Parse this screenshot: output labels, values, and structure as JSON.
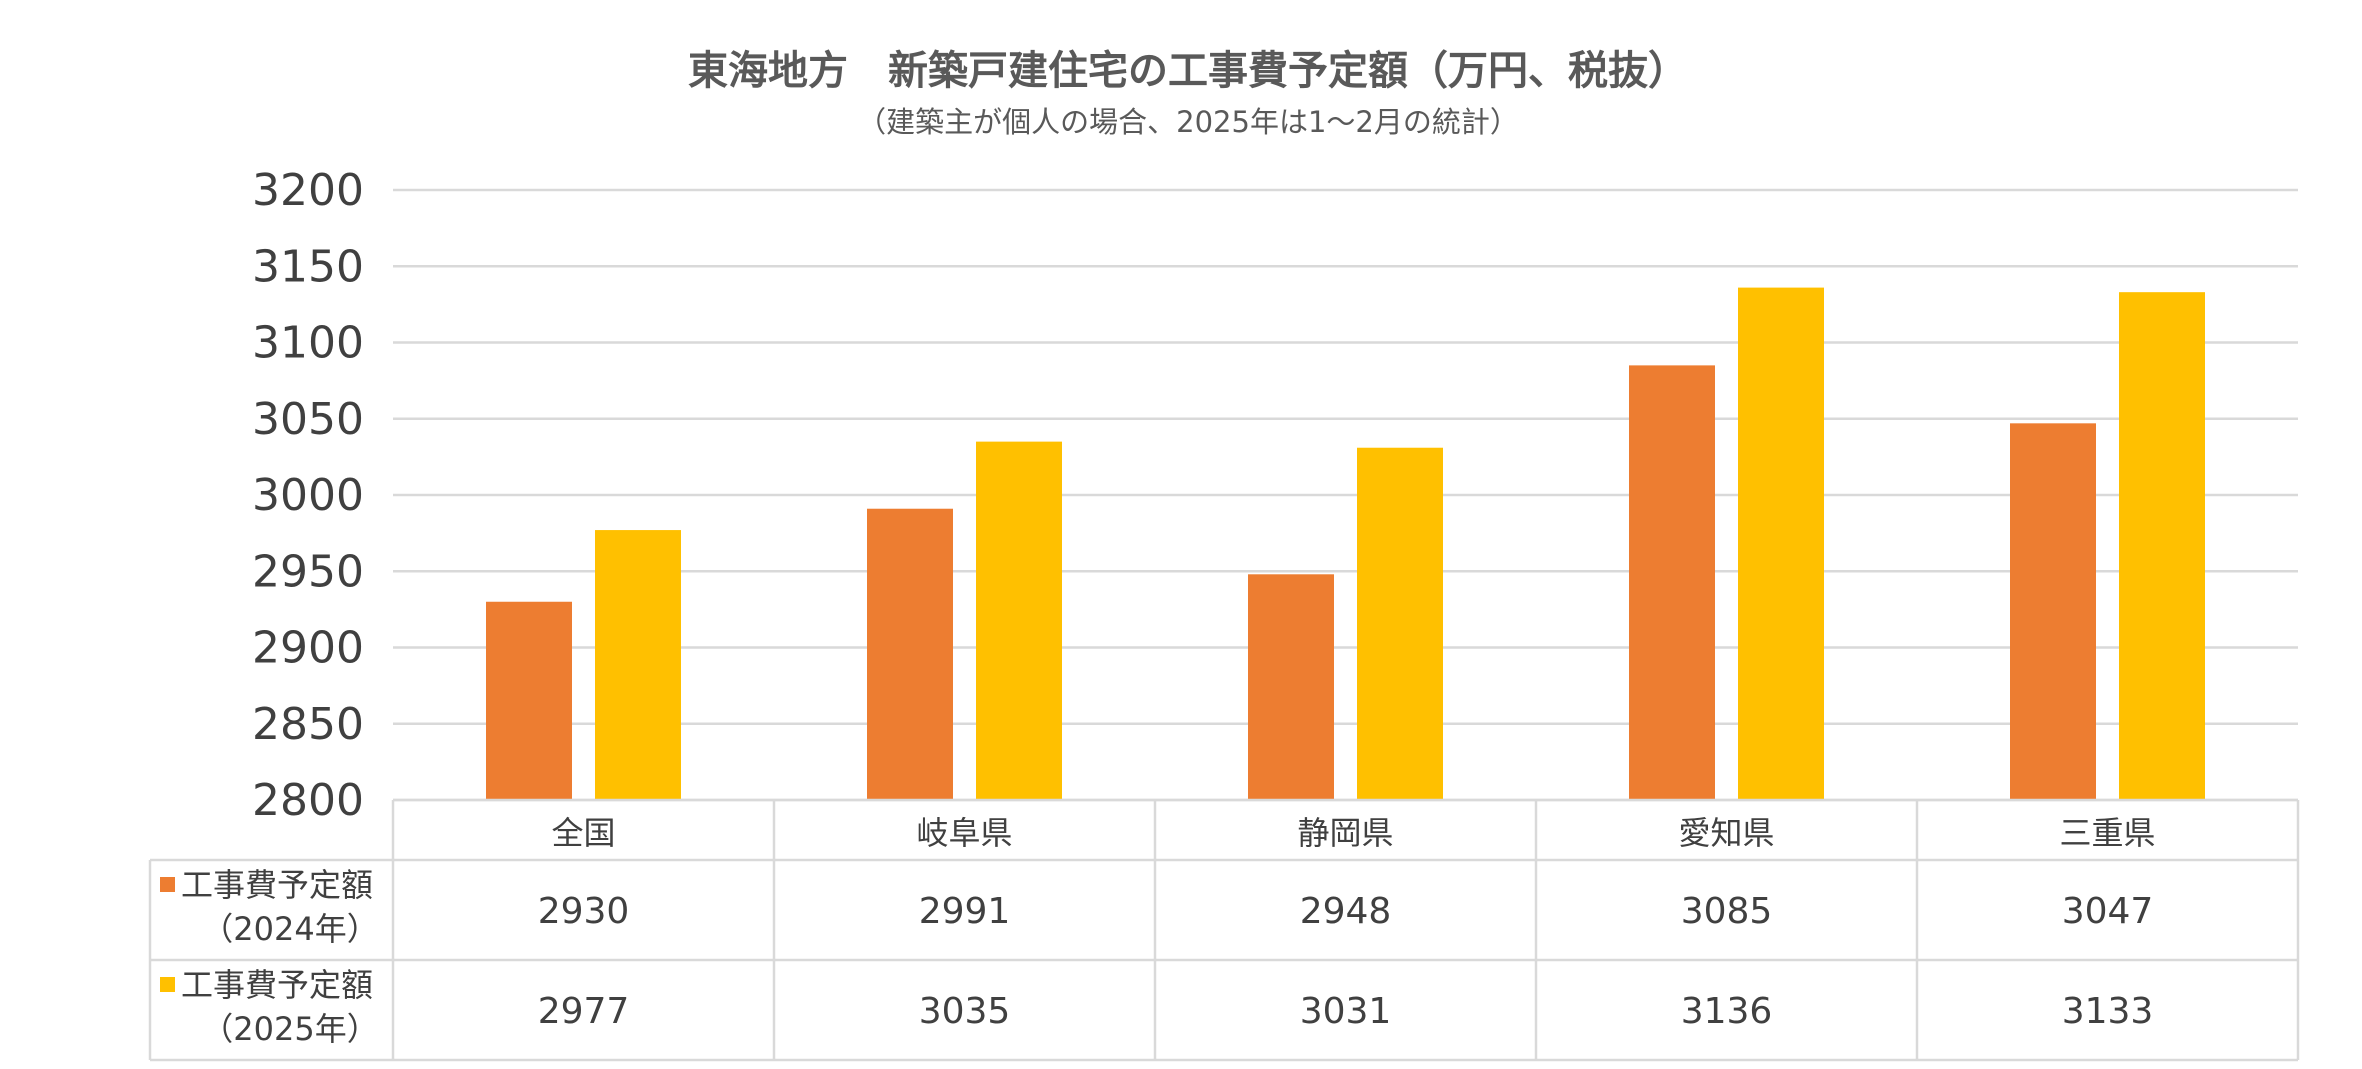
{
  "chart_data": {
    "type": "bar",
    "title": "東海地方　新築戸建住宅の工事費予定額（万円、税抜）",
    "subtitle": "（建築主が個人の場合、2025年は1～2月の統計）",
    "categories": [
      "全国",
      "岐阜県",
      "静岡県",
      "愛知県",
      "三重県"
    ],
    "ylim": [
      2800,
      3200
    ],
    "yticks": [
      "3200",
      "3150",
      "3100",
      "3050",
      "3000",
      "2950",
      "2900",
      "2850",
      "2800"
    ],
    "grid": true,
    "legend_placement": "data-table",
    "series": [
      {
        "name": "工事費予定額",
        "name_sub": "（2024年）",
        "color": "#ED7D31",
        "values": [
          2930,
          2991,
          2948,
          3085,
          3047
        ]
      },
      {
        "name": "工事費予定額",
        "name_sub": "（2025年）",
        "color": "#FFC000",
        "values": [
          2977,
          3035,
          3031,
          3136,
          3133
        ]
      }
    ]
  }
}
